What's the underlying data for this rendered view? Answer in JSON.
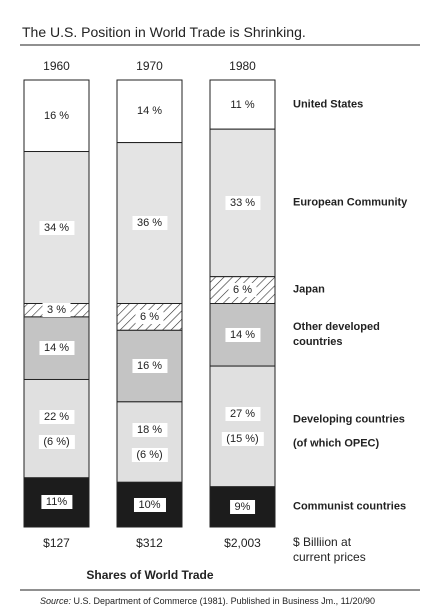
{
  "chart_data": {
    "type": "stacked-bar",
    "title": "The U.S. Position in World Trade is Shrinking.",
    "categories": [
      "1960",
      "1970",
      "1980"
    ],
    "ylim": [
      0,
      100
    ],
    "series": [
      {
        "name": "United States",
        "color": "#ffffff",
        "values": [
          16,
          14,
          11
        ],
        "value_labels": [
          "16 %",
          "14 %",
          "11 %"
        ]
      },
      {
        "name": "European Community",
        "color": "#e4e4e4",
        "values": [
          34,
          36,
          33
        ],
        "value_labels": [
          "34 %",
          "36 %",
          "33 %"
        ]
      },
      {
        "name": "Japan",
        "color": "#ffffff",
        "pattern": "hatch",
        "values": [
          3,
          6,
          6
        ],
        "value_labels": [
          "3 %",
          "6 %",
          "6 %"
        ]
      },
      {
        "name": "Other developed countries",
        "color": "#c4c4c4",
        "values": [
          14,
          16,
          14
        ],
        "value_labels": [
          "14 %",
          "16 %",
          "14 %"
        ]
      },
      {
        "name": "Developing countries",
        "color": "#e0e0e0",
        "values": [
          22,
          18,
          27
        ],
        "value_labels": [
          "22 %",
          "18 %",
          "27 %"
        ]
      },
      {
        "name": "Communist countries",
        "color": "#1c1c1c",
        "values": [
          11,
          10,
          9
        ],
        "value_labels": [
          "11%",
          "10%",
          "9%"
        ]
      }
    ],
    "opec": {
      "name": "(of which OPEC)",
      "values": [
        6,
        6,
        15
      ],
      "value_labels": [
        "(6 %)",
        "(6 %)",
        "(15 %)"
      ]
    },
    "totals": {
      "values": [
        127,
        312,
        2003
      ],
      "value_labels": [
        "$127",
        "$312",
        "$2,003"
      ],
      "label": [
        "$ Billiion at",
        "current prices"
      ]
    },
    "xlabel": "Shares of World Trade",
    "source_label": "Source:",
    "source": "U.S. Department of Commerce (1981). Published in Business Jm., 11/20/90"
  }
}
